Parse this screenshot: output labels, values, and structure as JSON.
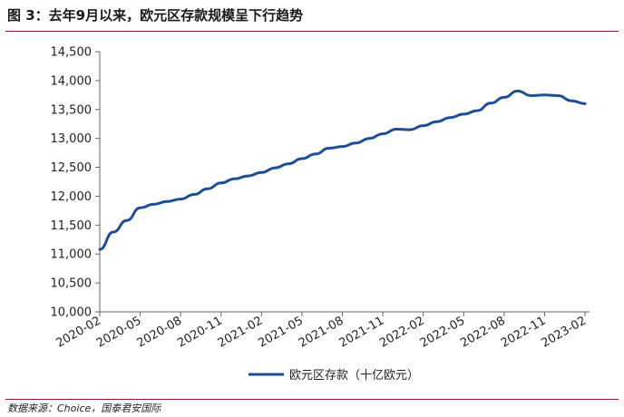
{
  "header": {
    "title": "图 3：去年9月以来，欧元区存款规模呈下行趋势"
  },
  "footer": {
    "source": "数据来源：Choice，国泰君安国际"
  },
  "chart_data": {
    "type": "line",
    "ylim": [
      10000,
      14500
    ],
    "yticks": [
      "10,000",
      "10,500",
      "11,000",
      "11,500",
      "12,000",
      "12,500",
      "13,000",
      "13,500",
      "14,000",
      "14,500"
    ],
    "yticks_values": [
      10000,
      10500,
      11000,
      11500,
      12000,
      12500,
      13000,
      13500,
      14000,
      14500
    ],
    "xticks": [
      "2020-02",
      "2020-05",
      "2020-08",
      "2020-11",
      "2021-02",
      "2021-05",
      "2021-08",
      "2021-11",
      "2022-02",
      "2022-05",
      "2022-08",
      "2022-11",
      "2023-02"
    ],
    "grid": false,
    "legend_position": "bottom",
    "series": [
      {
        "name": "欧元区存款（十亿欧元）",
        "color": "#1f4e96",
        "x": [
          "2020-02",
          "2020-03",
          "2020-04",
          "2020-05",
          "2020-06",
          "2020-07",
          "2020-08",
          "2020-09",
          "2020-10",
          "2020-11",
          "2020-12",
          "2021-01",
          "2021-02",
          "2021-03",
          "2021-04",
          "2021-05",
          "2021-06",
          "2021-07",
          "2021-08",
          "2021-09",
          "2021-10",
          "2021-11",
          "2021-12",
          "2022-01",
          "2022-02",
          "2022-03",
          "2022-04",
          "2022-05",
          "2022-06",
          "2022-07",
          "2022-08",
          "2022-09",
          "2022-10",
          "2022-11",
          "2022-12",
          "2023-01",
          "2023-02"
        ],
        "values": [
          11080,
          11380,
          11580,
          11800,
          11860,
          11910,
          11950,
          12030,
          12130,
          12230,
          12300,
          12350,
          12410,
          12490,
          12560,
          12650,
          12730,
          12830,
          12860,
          12920,
          13000,
          13080,
          13160,
          13150,
          13220,
          13290,
          13360,
          13420,
          13480,
          13610,
          13710,
          13820,
          13740,
          13750,
          13740,
          13650,
          13600
        ]
      }
    ]
  }
}
